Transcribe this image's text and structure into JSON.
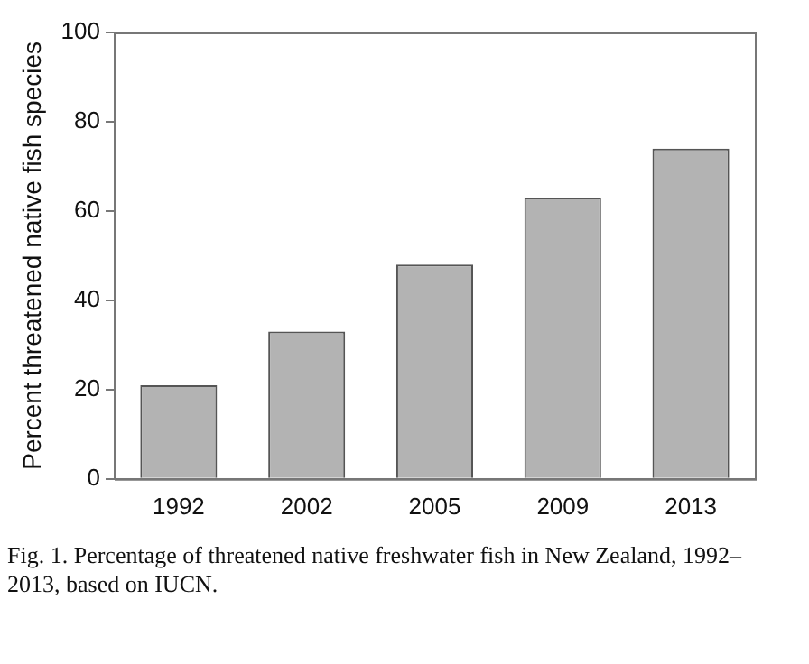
{
  "chart_data": {
    "type": "bar",
    "ylabel": "Percent threatened native fish species",
    "categories": [
      "1992",
      "2002",
      "2005",
      "2009",
      "2013"
    ],
    "values": [
      21,
      33,
      48,
      63,
      74
    ],
    "color": "#b3b3b3",
    "ylim": [
      0,
      100
    ],
    "yticks": [
      0,
      20,
      40,
      60,
      80,
      100
    ],
    "grid": false,
    "legend": false,
    "annotations": [
      "Fig. 1.   Percentage of threatened native freshwater fish in New Zealand, 1992–2013, based on IUCN."
    ]
  }
}
